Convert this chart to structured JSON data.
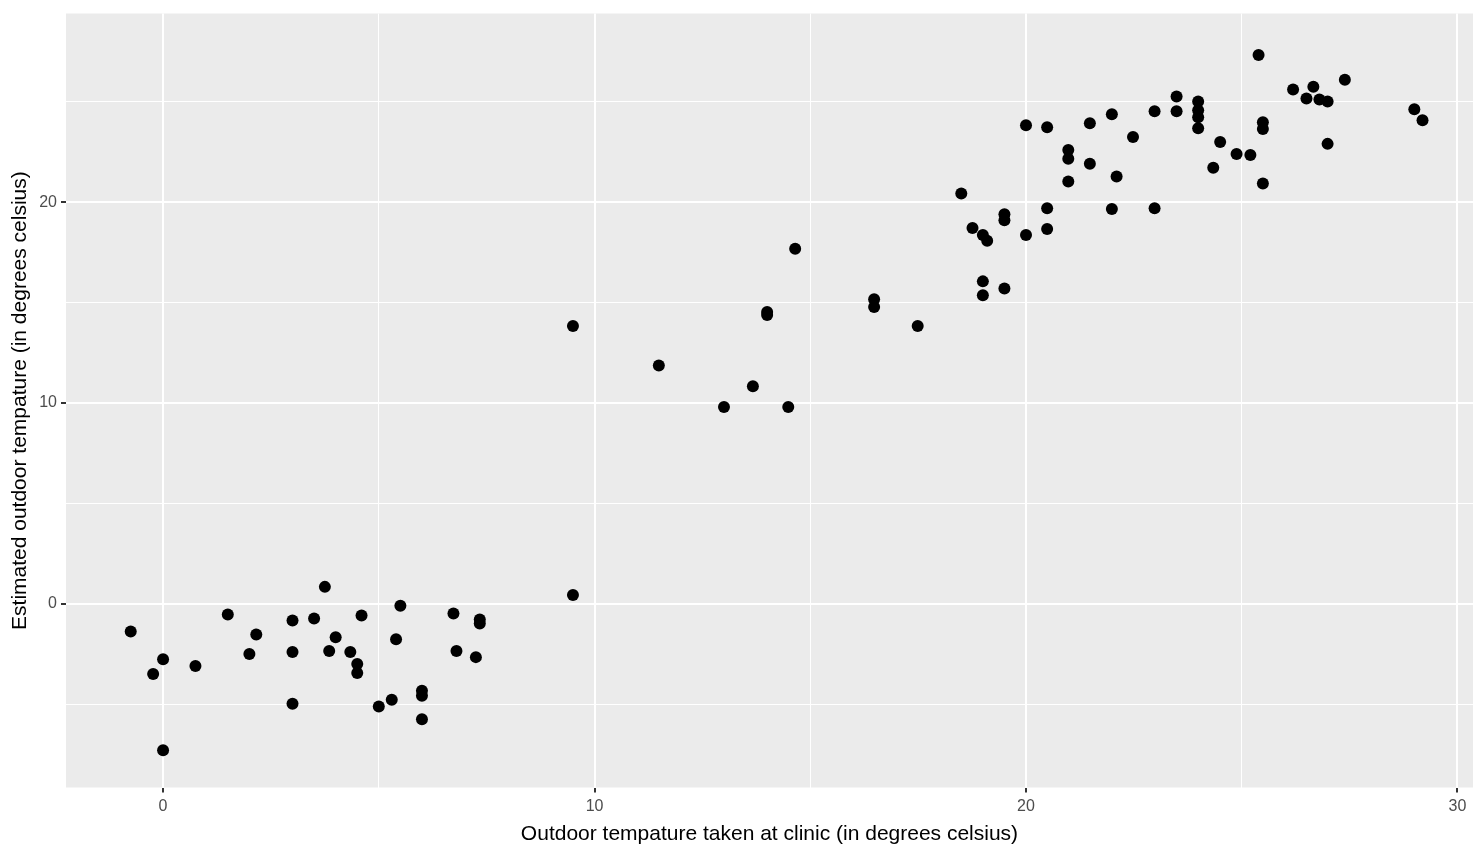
{
  "chart_data": {
    "type": "scatter",
    "xlabel": "Outdoor tempature taken at clinic (in degrees celsius)",
    "ylabel": "Estimated outdoor tempature (in degrees celsius)",
    "xlim": [
      -2.25,
      30.36
    ],
    "ylim": [
      -9.16,
      29.4
    ],
    "xticks": [
      0,
      {
        "value": 5,
        "label": null
      },
      10,
      {
        "value": 15,
        "label": null
      },
      20,
      {
        "value": 25,
        "label": null
      },
      30
    ],
    "yticks": [
      {
        "value": -5,
        "label": null
      },
      0,
      {
        "value": 5,
        "label": null
      },
      10,
      {
        "value": 15,
        "label": null
      },
      20,
      {
        "value": 25,
        "label": null
      }
    ],
    "grid": true,
    "marker": "circle",
    "series": [
      {
        "color": "#000000",
        "x": [
          -0.75,
          -0.23,
          0,
          0,
          0.75,
          1.5,
          2.0,
          2.16,
          3.0,
          3.0,
          3.0,
          3.5,
          3.75,
          3.85,
          4.0,
          4.34,
          4.5,
          4.5,
          4.6,
          5.0,
          5.3,
          5.4,
          5.5,
          6.0,
          6.0,
          6.0,
          6.73,
          6.8,
          7.25,
          7.34,
          7.34,
          9.5,
          9.5,
          11.49,
          13.0,
          13.67,
          14.0,
          14.0,
          14.49,
          14.65,
          16.48,
          16.48,
          17.49,
          18.5,
          18.76,
          19.0,
          19.1,
          19.0,
          19.0,
          19.5,
          19.5,
          19.5,
          20.0,
          20.0,
          20.49,
          20.49,
          20.49,
          20.98,
          20.98,
          20.98,
          21.48,
          21.48,
          21.99,
          21.99,
          22.1,
          22.48,
          22.98,
          22.98,
          23.49,
          23.49,
          23.99,
          23.99,
          23.99,
          23.99,
          24.34,
          24.5,
          24.88,
          25.2,
          25.39,
          25.49,
          25.49,
          25.49,
          26.19,
          26.5,
          26.66,
          26.8,
          26.99,
          26.99,
          27.39,
          29.0,
          29.19
        ],
        "values": [
          -1.38,
          -3.5,
          -2.76,
          -7.3,
          -3.1,
          -0.54,
          -2.5,
          -1.53,
          -0.84,
          -2.4,
          -4.98,
          -0.74,
          0.84,
          -2.36,
          -1.67,
          -2.41,
          -3.0,
          -3.45,
          -0.59,
          -5.12,
          -4.78,
          -1.77,
          -0.1,
          -4.33,
          -4.58,
          -5.76,
          -0.49,
          -2.36,
          -2.66,
          -0.79,
          -0.99,
          13.84,
          0.44,
          11.87,
          9.8,
          10.84,
          14.53,
          14.38,
          9.8,
          17.68,
          15.17,
          14.78,
          13.84,
          20.44,
          18.72,
          18.37,
          18.08,
          16.06,
          15.37,
          19.41,
          19.11,
          15.71,
          23.84,
          18.37,
          23.74,
          19.7,
          18.67,
          22.6,
          22.17,
          21.03,
          23.94,
          21.92,
          24.38,
          19.66,
          21.28,
          23.25,
          24.53,
          19.7,
          25.27,
          24.53,
          25.02,
          24.58,
          24.24,
          23.69,
          21.72,
          23.0,
          22.41,
          22.36,
          27.34,
          23.99,
          23.65,
          20.94,
          25.62,
          25.17,
          25.76,
          25.12,
          25.02,
          22.91,
          26.11,
          24.63,
          24.09
        ]
      }
    ]
  }
}
